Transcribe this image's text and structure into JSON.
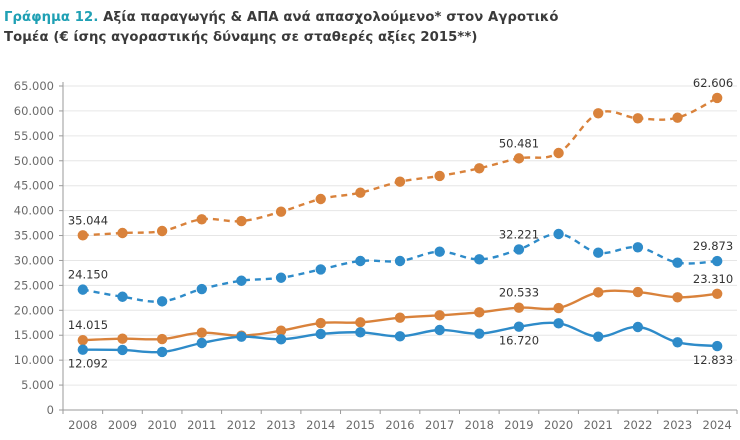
{
  "header": {
    "title_number": "Γράφημα 12.",
    "title_line1": " Αξία παραγωγής & ΑΠΑ ανά απασχολούμενο* στον Αγροτικό",
    "title_line2": "Τομέα (€ ίσης αγοραστικής δύναμης σε σταθερές αξίες 2015**)"
  },
  "chart_data": {
    "type": "line",
    "title": "Γράφημα 12. Αξία παραγωγής & ΑΠΑ ανά απασχολούμενο* στον Αγροτικό Τομέα (€ ίσης αγοραστικής δύναμης σε σταθερές αξίες 2015**)",
    "xlabel": "",
    "ylabel": "",
    "ylim": [
      0,
      65000
    ],
    "yticks": [
      0,
      5000,
      10000,
      15000,
      20000,
      25000,
      30000,
      35000,
      40000,
      45000,
      50000,
      55000,
      60000,
      65000
    ],
    "ytick_labels": [
      "0",
      "5.000",
      "10.000",
      "15.000",
      "20.000",
      "25.000",
      "30.000",
      "35.000",
      "40.000",
      "45.000",
      "50.000",
      "55.000",
      "60.000",
      "65.000"
    ],
    "grid": true,
    "legend": "none",
    "categories": [
      "2008",
      "2009",
      "2010",
      "2011",
      "2012",
      "2013",
      "2014",
      "2015",
      "2016",
      "2017",
      "2018",
      "2019",
      "2020",
      "2021",
      "2022",
      "2023",
      "2024"
    ],
    "series": [
      {
        "name": "orange-dashed",
        "color": "#D9823B",
        "style": "dashed",
        "values": [
          35044,
          35510,
          35910,
          38260,
          37900,
          39780,
          42330,
          43600,
          45800,
          46950,
          48490,
          50481,
          51560,
          59530,
          58520,
          58650,
          62606
        ],
        "labels": [
          {
            "index": 0,
            "text": "35.044"
          },
          {
            "index": 11,
            "text": "50.481"
          },
          {
            "index": 16,
            "text": "62.606"
          }
        ]
      },
      {
        "name": "blue-dashed",
        "color": "#2E8BC9",
        "style": "dashed",
        "values": [
          24150,
          22720,
          21790,
          24270,
          25930,
          26530,
          28200,
          29890,
          29890,
          31760,
          30230,
          32221,
          35310,
          31560,
          32640,
          29560,
          29873
        ],
        "labels": [
          {
            "index": 0,
            "text": "24.150"
          },
          {
            "index": 11,
            "text": "32.221"
          },
          {
            "index": 16,
            "text": "29.873"
          }
        ]
      },
      {
        "name": "orange-solid",
        "color": "#D9823B",
        "style": "solid",
        "values": [
          14015,
          14310,
          14240,
          15510,
          14910,
          15910,
          17450,
          17580,
          18520,
          18990,
          19590,
          20533,
          20460,
          23600,
          23670,
          22610,
          23310
        ],
        "labels": [
          {
            "index": 0,
            "text": "14.015"
          },
          {
            "index": 11,
            "text": "20.533"
          },
          {
            "index": 16,
            "text": "23.310"
          }
        ]
      },
      {
        "name": "blue-solid",
        "color": "#2E8BC9",
        "style": "solid",
        "values": [
          12092,
          12040,
          11640,
          13440,
          14710,
          14180,
          15250,
          15580,
          14780,
          16050,
          15310,
          16720,
          17390,
          14710,
          16650,
          13580,
          12833
        ],
        "labels": [
          {
            "index": 0,
            "text": "12.092",
            "below": true
          },
          {
            "index": 11,
            "text": "16.720",
            "below": true
          },
          {
            "index": 16,
            "text": "12.833",
            "below": true
          }
        ]
      }
    ]
  }
}
